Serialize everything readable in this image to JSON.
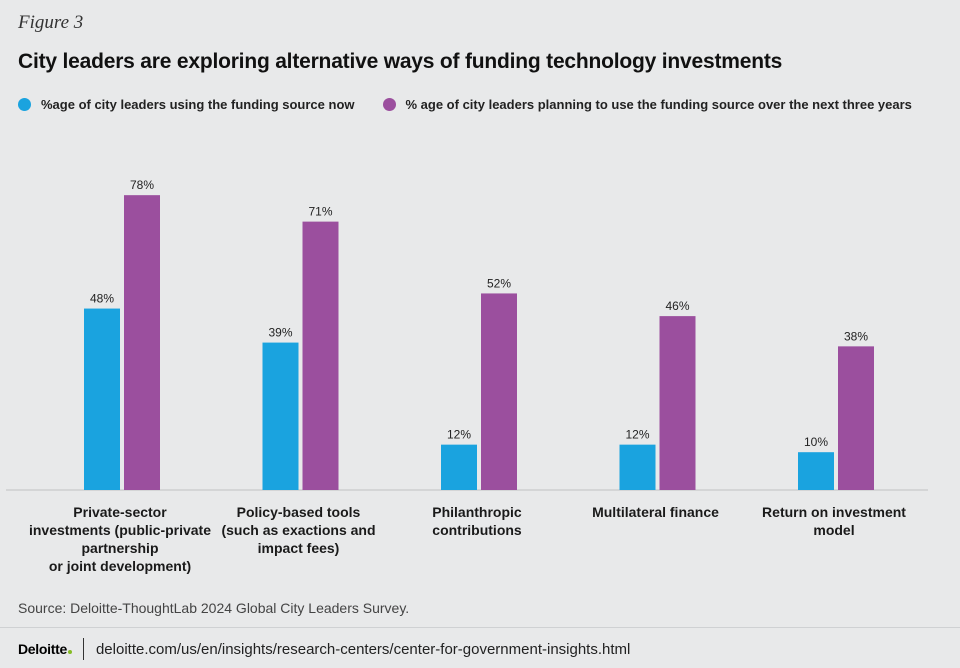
{
  "header": {
    "figure_label": "Figure 3",
    "title": "City leaders are exploring alternative ways of funding technology investments"
  },
  "chart_data": {
    "type": "bar",
    "title": "City leaders are exploring alternative ways of funding technology investments",
    "xlabel": "",
    "ylabel": "",
    "ylim": [
      0,
      100
    ],
    "grid": false,
    "legend_position": "top-left",
    "categories": [
      [
        "Private-sector",
        "investments (public-private",
        "partnership",
        "or joint development)"
      ],
      [
        "Policy-based tools",
        "(such as exactions and",
        "impact fees)"
      ],
      [
        "Philanthropic",
        "contributions"
      ],
      [
        "Multilateral finance"
      ],
      [
        "Return on investment",
        "model"
      ]
    ],
    "series": [
      {
        "name": "%age of city leaders using the funding source now",
        "color": "#1aa3df",
        "values": [
          48,
          39,
          12,
          12,
          10
        ],
        "labels": [
          "48%",
          "39%",
          "12%",
          "12%",
          "10%"
        ]
      },
      {
        "name": "% age of city leaders planning to use the funding source over the next three years",
        "color": "#9b4f9e",
        "values": [
          78,
          71,
          52,
          46,
          38
        ],
        "labels": [
          "78%",
          "71%",
          "52%",
          "46%",
          "38%"
        ]
      }
    ]
  },
  "footer": {
    "source": "Source: Deloitte-ThoughtLab 2024 Global City Leaders Survey.",
    "logo": "Deloitte",
    "url": "deloitte.com/us/en/insights/research-centers/center-for-government-insights.html"
  },
  "colors": {
    "background": "#e8e9ea",
    "baseline": "#bfc1c3",
    "logo_dot": "#86bc25"
  }
}
